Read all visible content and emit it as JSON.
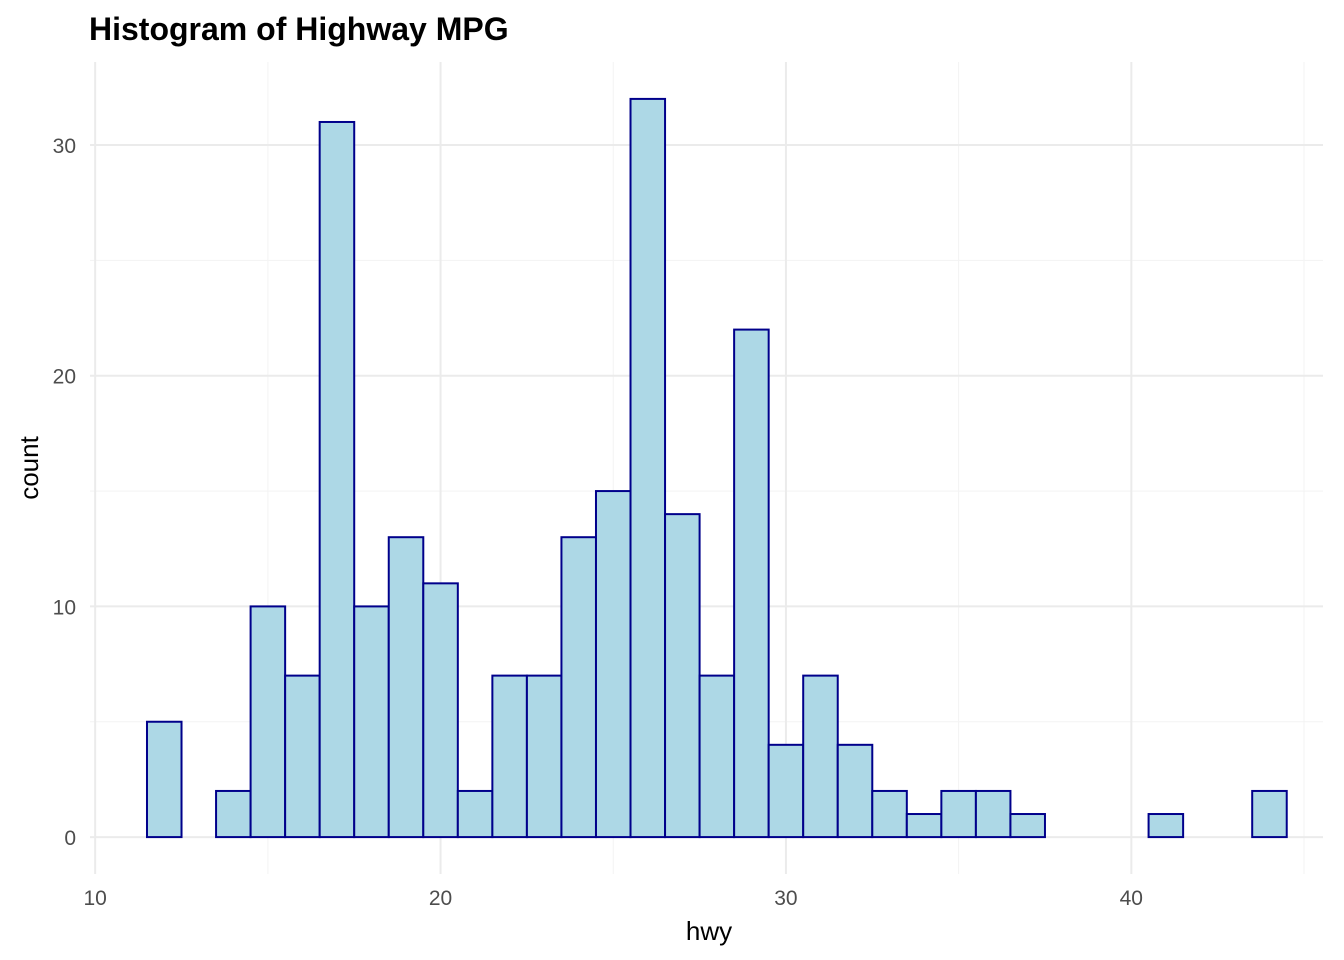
{
  "chart_data": {
    "type": "bar",
    "subtype": "histogram",
    "title": "Histogram of Highway MPG",
    "xlabel": "hwy",
    "ylabel": "count",
    "bin_width": 1,
    "bin_centers": [
      12,
      13,
      14,
      15,
      16,
      17,
      18,
      19,
      20,
      21,
      22,
      23,
      24,
      25,
      26,
      27,
      28,
      29,
      30,
      31,
      32,
      33,
      34,
      35,
      36,
      37,
      38,
      39,
      40,
      41,
      42,
      43,
      44
    ],
    "values": [
      5,
      0,
      2,
      10,
      7,
      31,
      10,
      13,
      11,
      2,
      7,
      7,
      13,
      15,
      32,
      14,
      7,
      22,
      4,
      7,
      4,
      2,
      1,
      2,
      2,
      1,
      0,
      0,
      0,
      1,
      0,
      0,
      2
    ],
    "xlim": [
      9.85,
      45.55
    ],
    "ylim": [
      -1.6,
      33.6
    ],
    "x_ticks": [
      10,
      20,
      30,
      40
    ],
    "x_tick_labels": [
      "10",
      "20",
      "30",
      "40"
    ],
    "y_ticks": [
      0,
      10,
      20,
      30
    ],
    "y_tick_labels": [
      "0",
      "10",
      "20",
      "30"
    ],
    "grid": true,
    "colors": {
      "bar_fill": "#add8e6",
      "bar_outline": "#00008b",
      "grid_major": "#ebebeb",
      "grid_minor": "#f3f3f3",
      "tick_text": "#4d4d4d",
      "text": "#000000"
    }
  }
}
